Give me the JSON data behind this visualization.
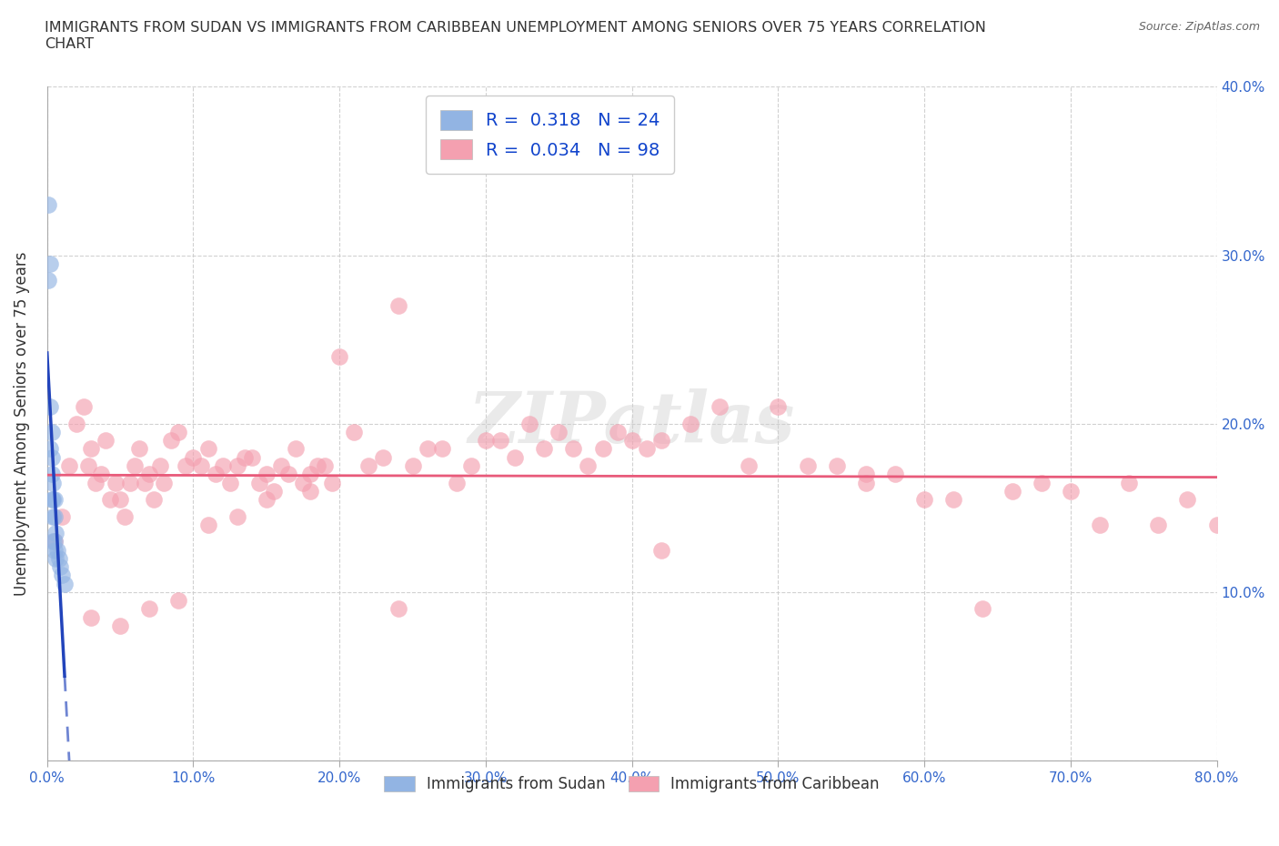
{
  "title": "IMMIGRANTS FROM SUDAN VS IMMIGRANTS FROM CARIBBEAN UNEMPLOYMENT AMONG SENIORS OVER 75 YEARS CORRELATION\nCHART",
  "source": "Source: ZipAtlas.com",
  "xlabel_sudan": "Immigrants from Sudan",
  "xlabel_caribbean": "Immigrants from Caribbean",
  "ylabel": "Unemployment Among Seniors over 75 years",
  "sudan_R": 0.318,
  "sudan_N": 24,
  "caribbean_R": 0.034,
  "caribbean_N": 98,
  "xlim": [
    0,
    0.8
  ],
  "ylim": [
    0,
    0.4
  ],
  "xticks": [
    0.0,
    0.1,
    0.2,
    0.3,
    0.4,
    0.5,
    0.6,
    0.7,
    0.8
  ],
  "yticks": [
    0.0,
    0.1,
    0.2,
    0.3,
    0.4
  ],
  "xtick_labels": [
    "0.0%",
    "10.0%",
    "20.0%",
    "30.0%",
    "40.0%",
    "50.0%",
    "60.0%",
    "70.0%",
    "80.0%"
  ],
  "ytick_labels_right": [
    "",
    "10.0%",
    "20.0%",
    "30.0%",
    "40.0%"
  ],
  "color_sudan": "#92b4e3",
  "color_caribbean": "#f4a0b0",
  "trend_sudan_color": "#2244bb",
  "trend_caribbean_color": "#e85a7a",
  "watermark": "ZIPatlas",
  "sudan_x": [
    0.001,
    0.001,
    0.002,
    0.002,
    0.002,
    0.003,
    0.003,
    0.003,
    0.003,
    0.004,
    0.004,
    0.004,
    0.004,
    0.005,
    0.005,
    0.005,
    0.005,
    0.006,
    0.006,
    0.007,
    0.008,
    0.009,
    0.01,
    0.012
  ],
  "sudan_y": [
    0.33,
    0.285,
    0.295,
    0.21,
    0.185,
    0.195,
    0.18,
    0.17,
    0.155,
    0.165,
    0.155,
    0.145,
    0.13,
    0.155,
    0.145,
    0.13,
    0.125,
    0.135,
    0.12,
    0.125,
    0.12,
    0.115,
    0.11,
    0.105
  ],
  "caribbean_x": [
    0.005,
    0.01,
    0.015,
    0.02,
    0.025,
    0.028,
    0.03,
    0.033,
    0.037,
    0.04,
    0.043,
    0.047,
    0.05,
    0.053,
    0.057,
    0.06,
    0.063,
    0.067,
    0.07,
    0.073,
    0.077,
    0.08,
    0.085,
    0.09,
    0.095,
    0.1,
    0.105,
    0.11,
    0.115,
    0.12,
    0.125,
    0.13,
    0.135,
    0.14,
    0.145,
    0.15,
    0.155,
    0.16,
    0.165,
    0.17,
    0.175,
    0.18,
    0.185,
    0.19,
    0.195,
    0.2,
    0.21,
    0.22,
    0.23,
    0.24,
    0.25,
    0.26,
    0.27,
    0.28,
    0.29,
    0.3,
    0.31,
    0.32,
    0.33,
    0.34,
    0.35,
    0.36,
    0.37,
    0.38,
    0.39,
    0.4,
    0.41,
    0.42,
    0.44,
    0.46,
    0.48,
    0.5,
    0.52,
    0.54,
    0.56,
    0.58,
    0.6,
    0.62,
    0.64,
    0.66,
    0.68,
    0.7,
    0.72,
    0.74,
    0.76,
    0.78,
    0.8,
    0.56,
    0.24,
    0.42,
    0.18,
    0.15,
    0.13,
    0.11,
    0.09,
    0.07,
    0.05,
    0.03
  ],
  "caribbean_y": [
    0.13,
    0.145,
    0.175,
    0.2,
    0.21,
    0.175,
    0.185,
    0.165,
    0.17,
    0.19,
    0.155,
    0.165,
    0.155,
    0.145,
    0.165,
    0.175,
    0.185,
    0.165,
    0.17,
    0.155,
    0.175,
    0.165,
    0.19,
    0.195,
    0.175,
    0.18,
    0.175,
    0.185,
    0.17,
    0.175,
    0.165,
    0.175,
    0.18,
    0.18,
    0.165,
    0.17,
    0.16,
    0.175,
    0.17,
    0.185,
    0.165,
    0.17,
    0.175,
    0.175,
    0.165,
    0.24,
    0.195,
    0.175,
    0.18,
    0.27,
    0.175,
    0.185,
    0.185,
    0.165,
    0.175,
    0.19,
    0.19,
    0.18,
    0.2,
    0.185,
    0.195,
    0.185,
    0.175,
    0.185,
    0.195,
    0.19,
    0.185,
    0.19,
    0.2,
    0.21,
    0.175,
    0.21,
    0.175,
    0.175,
    0.17,
    0.17,
    0.155,
    0.155,
    0.09,
    0.16,
    0.165,
    0.16,
    0.14,
    0.165,
    0.14,
    0.155,
    0.14,
    0.165,
    0.09,
    0.125,
    0.16,
    0.155,
    0.145,
    0.14,
    0.095,
    0.09,
    0.08,
    0.085
  ]
}
